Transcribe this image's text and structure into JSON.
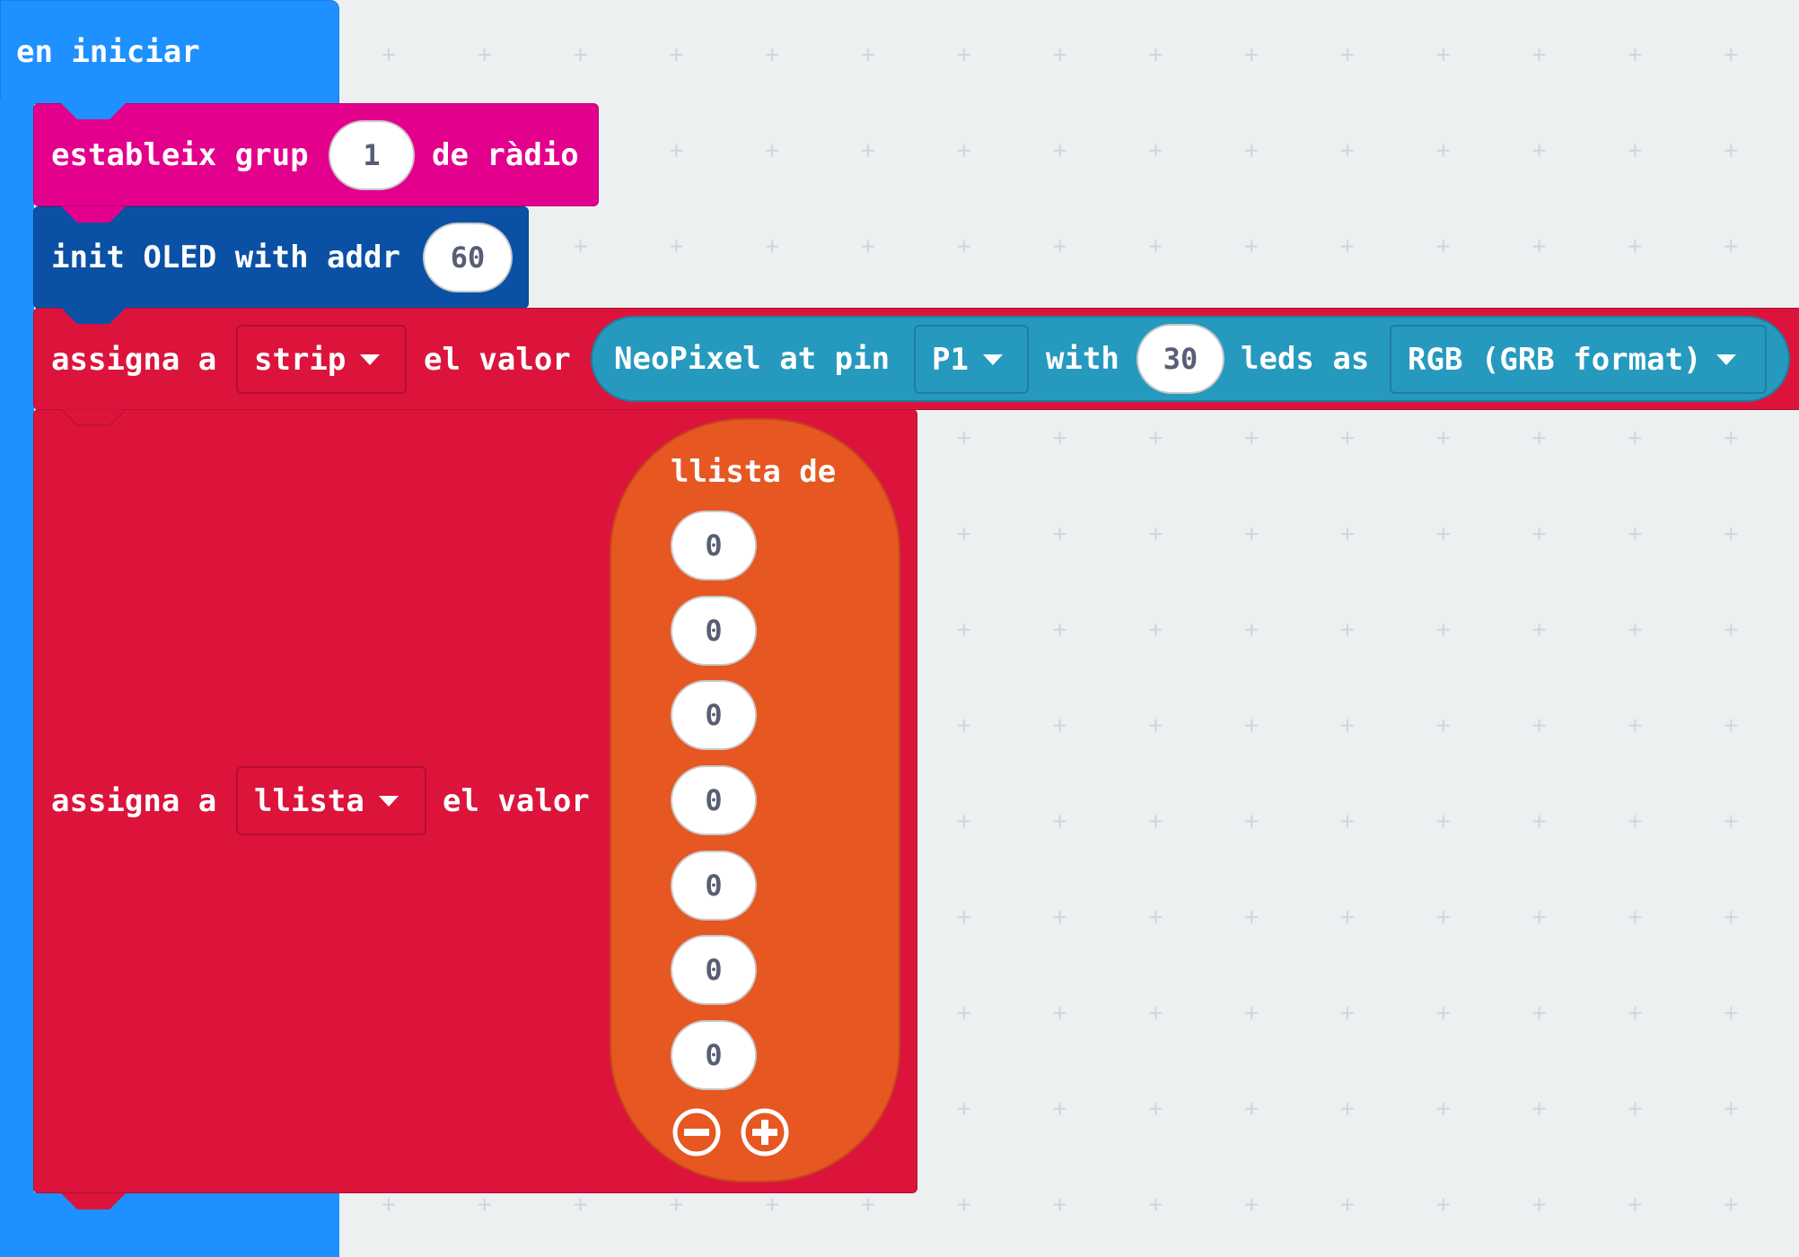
{
  "colors": {
    "events": "#1e90ff",
    "radio": "#e3008c",
    "oled": "#0a51a6",
    "variables": "#dc143c",
    "neopixel": "#2699bf",
    "arrays": "#e65722",
    "workspace": "#ecf0f1"
  },
  "on_start": {
    "label": "en iniciar"
  },
  "radio_block": {
    "prefix": "estableix grup",
    "value": "1",
    "suffix": "de ràdio"
  },
  "oled_block": {
    "prefix": "init OLED with addr",
    "value": "60"
  },
  "strip_block": {
    "prefix": "assigna a",
    "variable": "strip",
    "middle": "el valor",
    "neopixel": {
      "prefix": "NeoPixel at pin",
      "pin": "P1",
      "with_label": "with",
      "leds": "30",
      "leds_as_label": "leds as",
      "mode": "RGB (GRB format)"
    }
  },
  "list_block": {
    "prefix": "assigna a",
    "variable": "llista",
    "middle": "el valor",
    "list": {
      "label": "llista de",
      "items": [
        "0",
        "0",
        "0",
        "0",
        "0",
        "0",
        "0"
      ],
      "remove_icon": "minus-circle-icon",
      "add_icon": "plus-circle-icon"
    }
  }
}
